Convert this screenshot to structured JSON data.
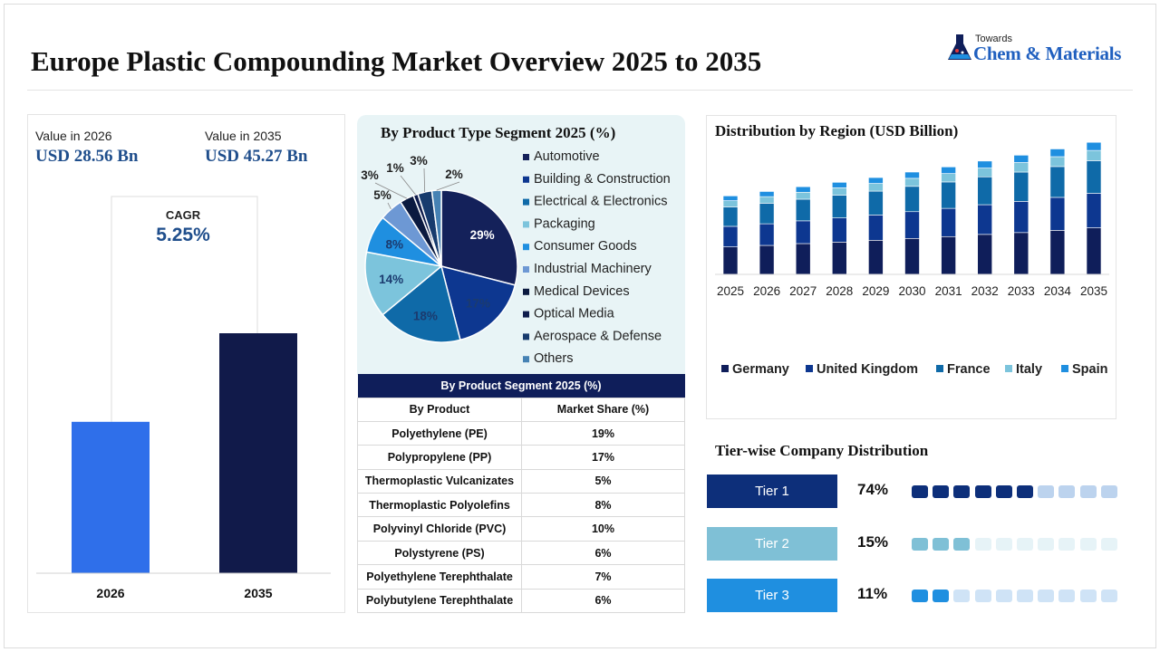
{
  "header": {
    "title": "Europe Plastic Compounding Market Overview 2025 to 2035",
    "logo_small": "Towards",
    "logo_big": "Chem & Materials"
  },
  "value_panel": {
    "label_2026": "Value in 2026",
    "value_2026": "USD 28.56 Bn",
    "label_2035": "Value in 2035",
    "value_2035": "USD 45.27 Bn",
    "cagr_label": "CAGR",
    "cagr_value": "5.25%"
  },
  "product_panel": {
    "title": "By Product Type Segment 2025 (%)"
  },
  "region_panel": {
    "title": "Distribution by Region (USD Billion)"
  },
  "segment_table": {
    "title": "By Product Segment 2025 (%)",
    "col_product": "By Product",
    "col_share": "Market Share (%)",
    "rows": [
      {
        "product": "Polyethylene (PE)",
        "share": "19%"
      },
      {
        "product": "Polypropylene (PP)",
        "share": "17%"
      },
      {
        "product": "Thermoplastic Vulcanizates",
        "share": "5%"
      },
      {
        "product": "Thermoplastic Polyolefins",
        "share": "8%"
      },
      {
        "product": "Polyvinyl Chloride (PVC)",
        "share": "10%"
      },
      {
        "product": "Polystyrene (PS)",
        "share": "6%"
      },
      {
        "product": "Polyethylene Terephthalate",
        "share": "7%"
      },
      {
        "product": "Polybutylene Terephthalate",
        "share": "6%"
      }
    ]
  },
  "tiers": {
    "title": "Tier-wise Company Distribution",
    "items": [
      {
        "label": "Tier 1",
        "pct": "74%",
        "filled": 6,
        "total": 10,
        "color": "#0d2f7a",
        "light": "#bcd3ee"
      },
      {
        "label": "Tier 2",
        "pct": "15%",
        "filled": 3,
        "total": 10,
        "color": "#7fc0d6",
        "light": "#e6f3f7"
      },
      {
        "label": "Tier 3",
        "pct": "11%",
        "filled": 2,
        "total": 10,
        "color": "#1f8fe0",
        "light": "#cfe3f6"
      }
    ]
  },
  "chart_data": [
    {
      "type": "bar",
      "categories": [
        "2026",
        "2035"
      ],
      "values": [
        28.56,
        45.27
      ],
      "colors": [
        "#2f6fea",
        "#111a4a"
      ],
      "title": "",
      "xlabel": "",
      "ylabel": ""
    },
    {
      "type": "pie",
      "title": "By Product Type Segment 2025 (%)",
      "labels": [
        "Automotive",
        "Building & Construction",
        "Electrical & Electronics",
        "Packaging",
        "Consumer Goods",
        "Industrial Machinery",
        "Medical Devices",
        "Optical Media",
        "Aerospace & Defense",
        "Others"
      ],
      "values": [
        29,
        17,
        18,
        14,
        8,
        5,
        3,
        1,
        3,
        2
      ],
      "value_labels": [
        "29%",
        "17%",
        "18%",
        "14%",
        "8%",
        "5%",
        "3%",
        "1%",
        "3%",
        "2%"
      ],
      "colors": [
        "#14215a",
        "#0d3790",
        "#0f6aa8",
        "#7cc4dc",
        "#1f8fe0",
        "#6d98d4",
        "#0b1a40",
        "#0e1c4c",
        "#173b6d",
        "#4682b4"
      ],
      "legend_position": "right"
    },
    {
      "type": "bar",
      "stacked": true,
      "title": "Distribution by Region (USD Billion)",
      "categories": [
        "2025",
        "2026",
        "2027",
        "2028",
        "2029",
        "2030",
        "2031",
        "2032",
        "2033",
        "2034",
        "2035"
      ],
      "series": [
        {
          "name": "Germany",
          "color": "#0f1e5a",
          "values": [
            7.5,
            7.9,
            8.4,
            8.8,
            9.3,
            9.8,
            10.3,
            10.9,
            11.4,
            12.0,
            12.7
          ]
        },
        {
          "name": "United Kingdom",
          "color": "#0d3790",
          "values": [
            5.6,
            5.9,
            6.2,
            6.6,
            6.9,
            7.3,
            7.7,
            8.1,
            8.5,
            9.0,
            9.4
          ]
        },
        {
          "name": "France",
          "color": "#0f6aa8",
          "values": [
            5.3,
            5.6,
            5.9,
            6.2,
            6.5,
            6.9,
            7.2,
            7.6,
            8.0,
            8.4,
            8.9
          ]
        },
        {
          "name": "Italy",
          "color": "#7cc4dc",
          "values": [
            1.7,
            1.8,
            1.9,
            2.0,
            2.1,
            2.2,
            2.3,
            2.4,
            2.6,
            2.7,
            2.8
          ]
        },
        {
          "name": "Spain",
          "color": "#1f8fe0",
          "values": [
            1.3,
            1.4,
            1.5,
            1.5,
            1.6,
            1.7,
            1.8,
            1.9,
            2.0,
            2.1,
            2.2
          ]
        }
      ],
      "ylim": [
        0,
        40
      ],
      "legend_position": "bottom",
      "grid": false
    }
  ]
}
